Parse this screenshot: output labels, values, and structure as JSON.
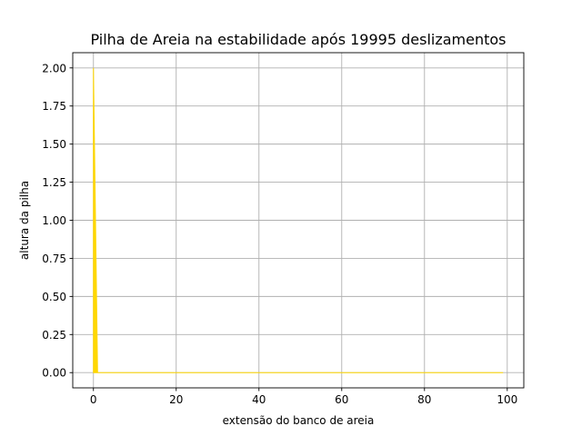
{
  "chart_data": {
    "type": "area",
    "title": "Pilha de Areia na estabilidade após 19995 deslizamentos",
    "xlabel": "extensão do banco de areia",
    "ylabel": "altura da pilha",
    "xlim": [
      -5,
      104
    ],
    "ylim": [
      -0.1,
      2.1
    ],
    "xticks": [
      0,
      20,
      40,
      60,
      80,
      100
    ],
    "xtick_labels": [
      "0",
      "20",
      "40",
      "60",
      "80",
      "100"
    ],
    "yticks": [
      0.0,
      0.25,
      0.5,
      0.75,
      1.0,
      1.25,
      1.5,
      1.75,
      2.0
    ],
    "ytick_labels": [
      "0.00",
      "0.25",
      "0.50",
      "0.75",
      "1.00",
      "1.25",
      "1.50",
      "1.75",
      "2.00"
    ],
    "grid": true,
    "fill_color": "#ffd700",
    "series": [
      {
        "x": [
          0,
          1,
          2,
          99
        ],
        "y": [
          2,
          0,
          0,
          0
        ]
      }
    ]
  }
}
